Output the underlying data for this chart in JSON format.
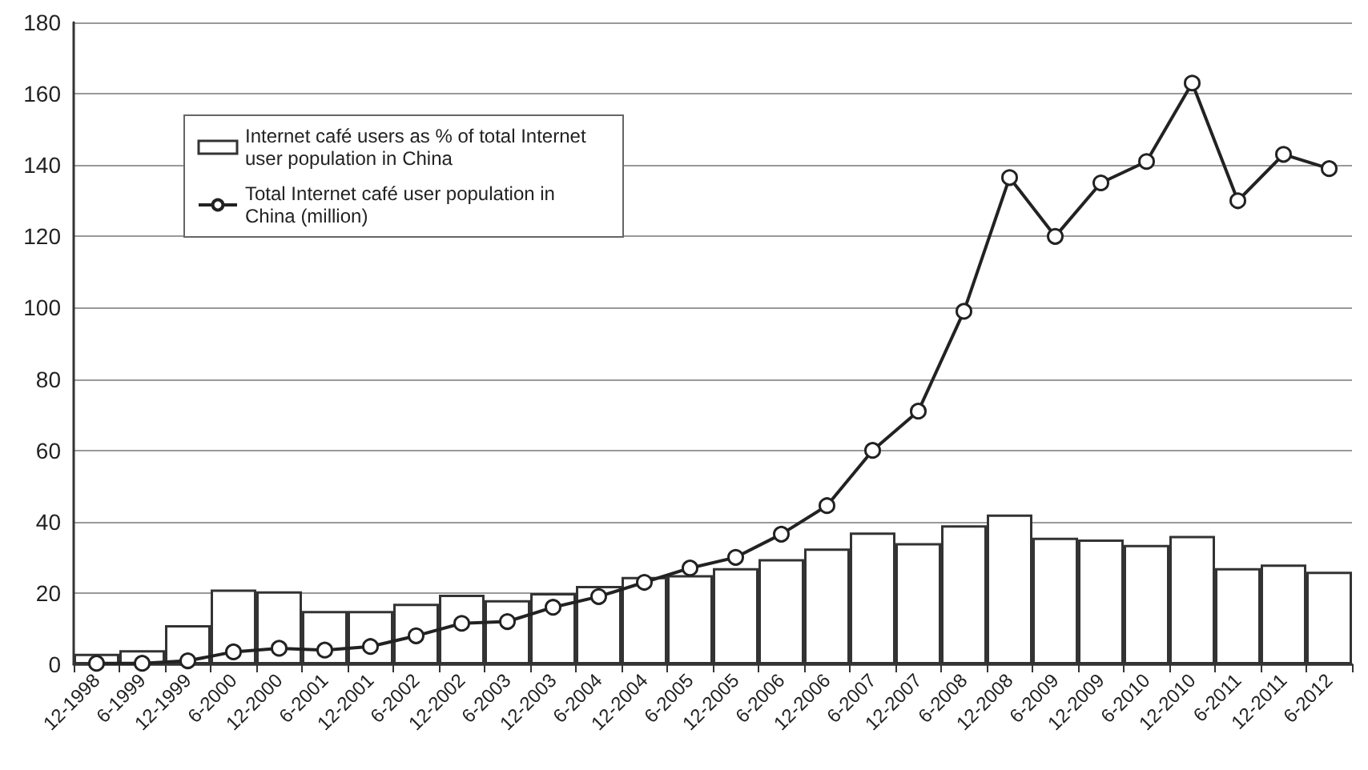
{
  "chart_data": {
    "type": "bar",
    "categories": [
      "12-1998",
      "6-1999",
      "12-1999",
      "6-2000",
      "12-2000",
      "6-2001",
      "12-2001",
      "6-2002",
      "12-2002",
      "6-2003",
      "12-2003",
      "6-2004",
      "12-2004",
      "6-2005",
      "12-2005",
      "6-2006",
      "12-2006",
      "6-2007",
      "12-2007",
      "6-2008",
      "12-2008",
      "6-2009",
      "12-2009",
      "6-2010",
      "12-2010",
      "6-2011",
      "12-2011",
      "6-2012"
    ],
    "series": [
      {
        "name": "Internet café users as % of total Internet user population in China",
        "color": "#ffffff",
        "values": [
          3,
          4,
          11,
          21,
          20.5,
          15,
          15,
          17,
          19.5,
          18,
          20,
          22,
          24.5,
          25,
          27,
          29.5,
          32.5,
          37,
          34,
          39,
          42,
          35.5,
          35,
          33.5,
          36,
          27,
          28,
          26
        ]
      },
      {
        "name": "Total Internet café user population in China (million)",
        "type": "line",
        "color": "#222222",
        "marker": "circle",
        "values": [
          0.3,
          0.3,
          1,
          3.5,
          4.5,
          4,
          5,
          8,
          11.5,
          12,
          16,
          19,
          23,
          27,
          30,
          36.5,
          44.5,
          60,
          71,
          99,
          136.5,
          120,
          135,
          141,
          163,
          130,
          143,
          139
        ]
      }
    ],
    "ylim": [
      0,
      180
    ],
    "yticks": [
      0,
      20,
      40,
      60,
      80,
      100,
      120,
      140,
      160,
      180
    ],
    "grid": "y",
    "legend": "top left"
  }
}
